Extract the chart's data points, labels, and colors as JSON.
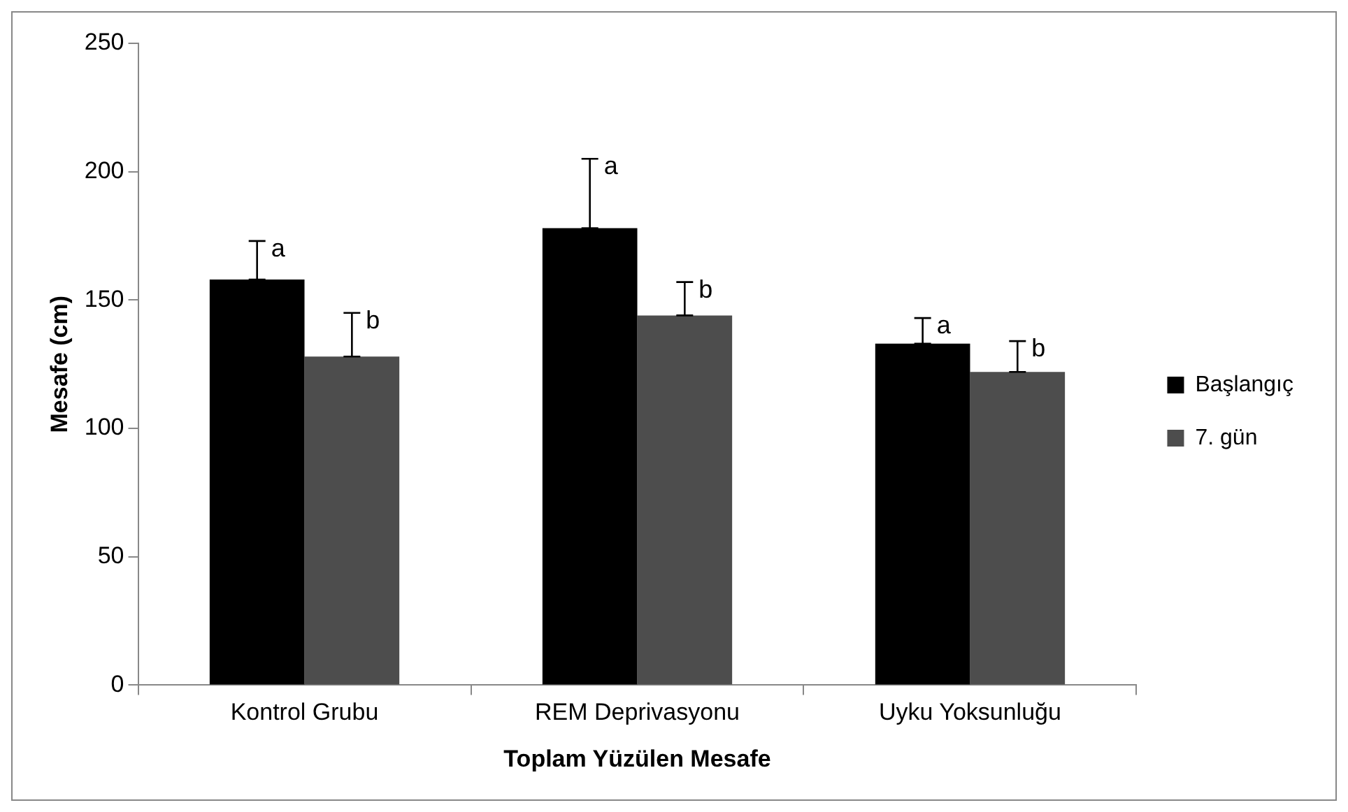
{
  "chart_data": {
    "type": "bar",
    "xlabel": "Toplam Yüzülen Mesafe",
    "ylabel": "Mesafe (cm)",
    "categories": [
      "Kontrol Grubu",
      "REM Deprivasyonu",
      "Uyku Yoksunluğu"
    ],
    "series": [
      {
        "name": "Başlangıç",
        "color": "#000000",
        "values": [
          158,
          178,
          133
        ],
        "errors": [
          [
            158,
            173
          ],
          [
            178,
            205
          ],
          [
            133,
            143
          ]
        ]
      },
      {
        "name": "7. gün",
        "color": "#4d4d4d",
        "values": [
          128,
          144,
          122
        ],
        "errors": [
          [
            128,
            145
          ],
          [
            144,
            157
          ],
          [
            122,
            134
          ]
        ]
      }
    ],
    "annotations": [
      "a",
      "b",
      "a",
      "b",
      "a",
      "b"
    ],
    "ylim": [
      0,
      250
    ],
    "yticks": [
      0,
      50,
      100,
      150,
      200,
      250
    ],
    "grid": false,
    "legend": "right"
  }
}
